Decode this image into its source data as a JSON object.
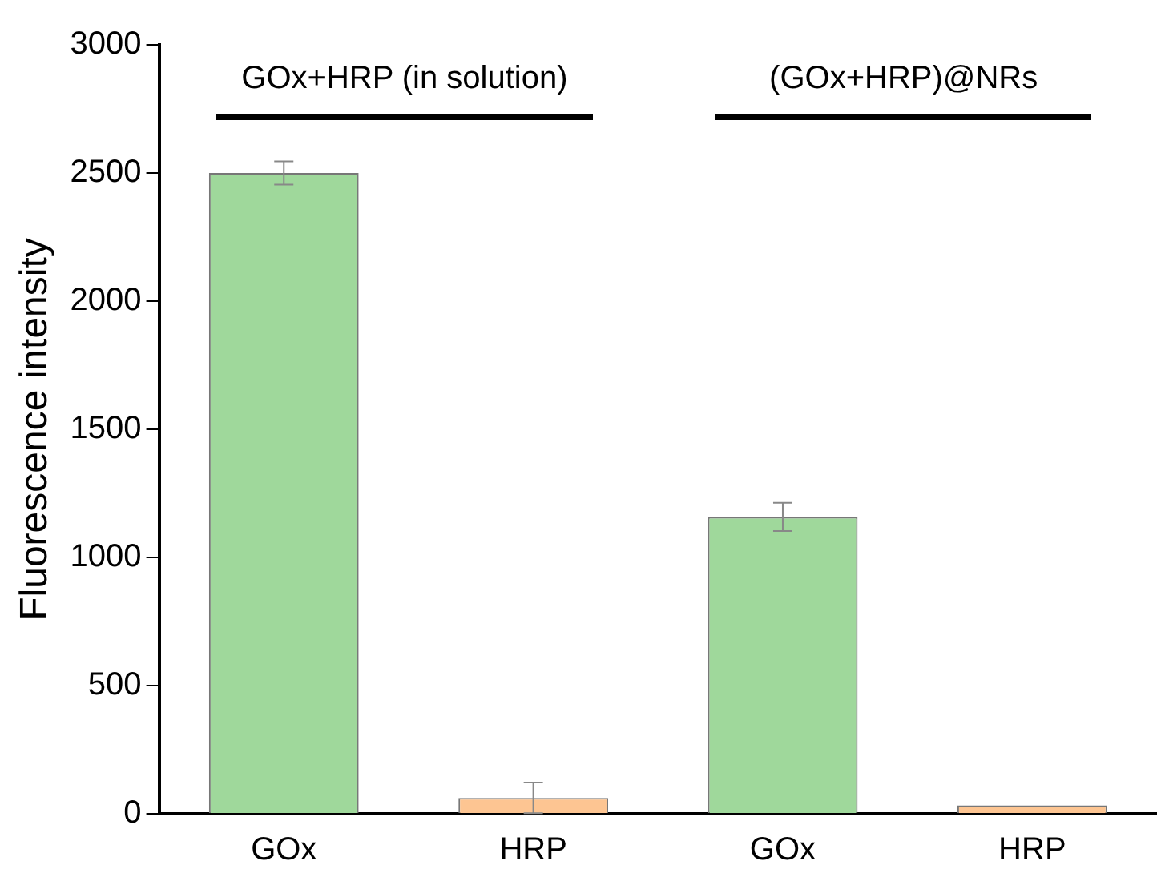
{
  "chart_data": {
    "type": "bar",
    "ylabel": "Fluorescence intensity",
    "categories": [
      "GOx",
      "HRP",
      "GOx",
      "HRP"
    ],
    "values": [
      2500,
      62,
      1158,
      33
    ],
    "colors": [
      "#9fd89b",
      "#fdc592",
      "#9fd89b",
      "#fdc592"
    ],
    "errors": [
      45,
      60,
      55,
      null
    ],
    "ylim": [
      0,
      3000
    ],
    "yticks": [
      0,
      500,
      1000,
      1500,
      2000,
      2500,
      3000
    ],
    "annotations": [
      "GOx+HRP (in solution)",
      "(GOx+HRP)@NRs"
    ],
    "grid": false,
    "legend": false
  }
}
